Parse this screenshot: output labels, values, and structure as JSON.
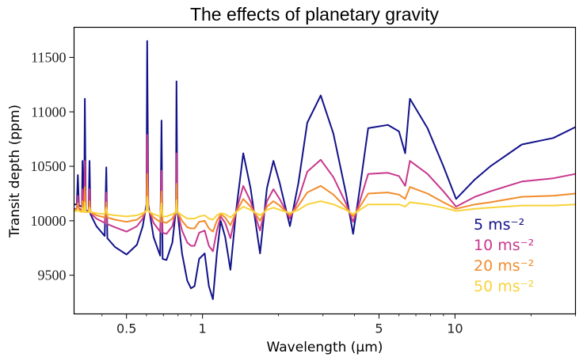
{
  "chart_data": {
    "type": "line",
    "title": "The effects of planetary gravity",
    "xlabel": "Wavelength (μm)",
    "ylabel": "Transit depth (ppm)",
    "xscale": "log",
    "xlim": [
      0.31,
      30
    ],
    "ylim": [
      9145,
      11776
    ],
    "xticks": [
      0.5,
      1,
      5,
      10
    ],
    "xtick_labels": [
      "0.5",
      "1",
      "5",
      "10"
    ],
    "yticks": [
      9500,
      10000,
      10500,
      11000,
      11500
    ],
    "ytick_labels": [
      "9500",
      "10000",
      "10500",
      "11000",
      "11500"
    ],
    "grid": false,
    "legend_position": "bottom-right",
    "x": [
      0.31,
      0.318,
      0.321,
      0.324,
      0.333,
      0.335,
      0.338,
      0.34,
      0.342,
      0.345,
      0.354,
      0.357,
      0.36,
      0.38,
      0.41,
      0.416,
      0.42,
      0.45,
      0.5,
      0.55,
      0.58,
      0.6,
      0.604,
      0.61,
      0.64,
      0.68,
      0.688,
      0.695,
      0.72,
      0.76,
      0.785,
      0.789,
      0.795,
      0.83,
      0.87,
      0.9,
      0.93,
      0.97,
      1.02,
      1.06,
      1.1,
      1.14,
      1.18,
      1.23,
      1.29,
      1.36,
      1.45,
      1.55,
      1.69,
      1.8,
      1.91,
      2.02,
      2.22,
      2.4,
      2.6,
      2.94,
      3.3,
      3.7,
      3.95,
      4.2,
      4.53,
      5.42,
      6.0,
      6.35,
      6.63,
      7.78,
      9.0,
      10.1,
      12,
      13.8,
      18.4,
      24.5,
      30
    ],
    "series": [
      {
        "name": "5 ms⁻²",
        "color": "#12128a",
        "values": [
          10150,
          10150,
          10420,
          10140,
          10130,
          10550,
          10120,
          10110,
          11120,
          10100,
          10080,
          10550,
          10060,
          9950,
          9860,
          10490,
          9840,
          9760,
          9690,
          9780,
          9950,
          10150,
          11650,
          10150,
          9850,
          9680,
          10920,
          9650,
          9640,
          9800,
          10100,
          11280,
          10100,
          9700,
          9450,
          9380,
          9400,
          9650,
          9700,
          9400,
          9280,
          9700,
          10000,
          9850,
          9550,
          10100,
          10620,
          10300,
          9700,
          10300,
          10550,
          10350,
          9950,
          10350,
          10900,
          11150,
          10800,
          10250,
          9880,
          10300,
          10850,
          10880,
          10820,
          10620,
          11120,
          10850,
          10500,
          10200,
          10380,
          10500,
          10700,
          10760,
          10860
        ]
      },
      {
        "name": "10 ms⁻²",
        "color": "#c8388c",
        "values": [
          10110,
          10110,
          10230,
          10110,
          10100,
          10290,
          10100,
          10090,
          10550,
          10090,
          10080,
          10290,
          10070,
          10020,
          9980,
          10260,
          9970,
          9940,
          9900,
          9950,
          10020,
          10110,
          10790,
          10110,
          9980,
          9900,
          10460,
          9890,
          9880,
          9950,
          10090,
          10620,
          10090,
          9910,
          9800,
          9770,
          9770,
          9890,
          9910,
          9770,
          9720,
          9910,
          10040,
          9980,
          9840,
          10090,
          10320,
          10180,
          9910,
          10180,
          10290,
          10200,
          10020,
          10200,
          10450,
          10560,
          10400,
          10160,
          9990,
          10180,
          10430,
          10440,
          10410,
          10320,
          10550,
          10430,
          10270,
          10130,
          10220,
          10270,
          10360,
          10390,
          10430
        ]
      },
      {
        "name": "20 ms⁻²",
        "color": "#f28c2c",
        "values": [
          10100,
          10100,
          10160,
          10090,
          10090,
          10180,
          10090,
          10090,
          10310,
          10080,
          10080,
          10180,
          10080,
          10050,
          10030,
          10170,
          10030,
          10010,
          9990,
          10010,
          10050,
          10100,
          10430,
          10100,
          10030,
          9990,
          10270,
          9990,
          9980,
          10020,
          10080,
          10340,
          10080,
          10000,
          9940,
          9930,
          9930,
          9990,
          10000,
          9930,
          9900,
          10000,
          10060,
          10030,
          9960,
          10080,
          10200,
          10130,
          10000,
          10130,
          10180,
          10140,
          10050,
          10140,
          10260,
          10320,
          10240,
          10120,
          10040,
          10130,
          10250,
          10260,
          10240,
          10200,
          10310,
          10250,
          10170,
          10110,
          10150,
          10170,
          10220,
          10230,
          10250
        ]
      },
      {
        "name": "50 ms⁻²",
        "color": "#f8d23a",
        "values": [
          10090,
          10090,
          10110,
          10090,
          10080,
          10120,
          10080,
          10080,
          10170,
          10080,
          10080,
          10120,
          10080,
          10070,
          10060,
          10120,
          10060,
          10050,
          10040,
          10050,
          10070,
          10090,
          10220,
          10090,
          10060,
          10040,
          10160,
          10040,
          10040,
          10060,
          10080,
          10190,
          10080,
          10050,
          10020,
          10020,
          10020,
          10040,
          10050,
          10020,
          10010,
          10050,
          10070,
          10060,
          10030,
          10080,
          10130,
          10100,
          10050,
          10100,
          10120,
          10100,
          10070,
          10100,
          10150,
          10180,
          10150,
          10100,
          10060,
          10100,
          10150,
          10150,
          10150,
          10130,
          10170,
          10150,
          10120,
          10090,
          10110,
          10120,
          10140,
          10140,
          10150
        ]
      }
    ]
  }
}
